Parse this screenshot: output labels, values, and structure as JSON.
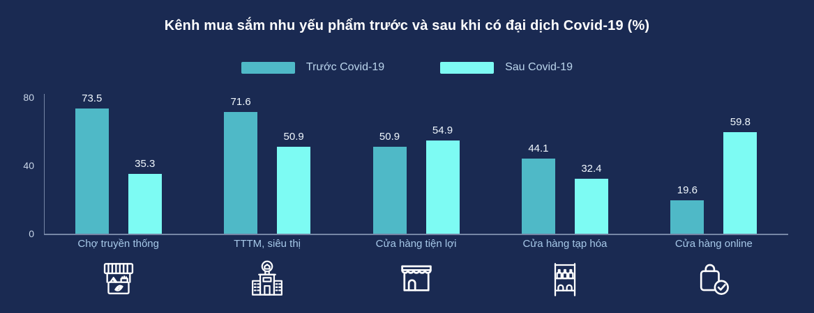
{
  "title": "Kênh mua sắm nhu yếu phẩm trước và sau khi có đại dịch Covid-19 (%)",
  "legend": [
    {
      "label": "Trước Covid-19",
      "color": "#4FB9C7"
    },
    {
      "label": "Sau Covid-19",
      "color": "#7DFBF3"
    }
  ],
  "chart_data": {
    "type": "bar",
    "title": "Kênh mua sắm nhu yếu phẩm trước và sau khi có đại dịch Covid-19 (%)",
    "categories": [
      "Chợ truyền thống",
      "TTTM, siêu thị",
      "Cửa hàng tiện lợi",
      "Cửa hàng tạp hóa",
      "Cửa hàng online"
    ],
    "series": [
      {
        "name": "Trước Covid-19",
        "color": "#4FB9C7",
        "values": [
          73.5,
          71.6,
          50.9,
          44.1,
          19.6
        ]
      },
      {
        "name": "Sau Covid-19",
        "color": "#7DFBF3",
        "values": [
          35.3,
          50.9,
          54.9,
          32.4,
          59.8
        ]
      }
    ],
    "ylim": [
      0,
      80
    ],
    "yticks": [
      0,
      40,
      80
    ],
    "grid": false,
    "legend_position": "top",
    "value_labels": true
  },
  "icons": [
    "market-stall-icon",
    "mall-building-icon",
    "storefront-icon",
    "shelf-bottles-icon",
    "shopping-bag-check-icon"
  ],
  "colors": {
    "background": "#1A2A52",
    "axis": "#C3D2EB",
    "title": "#FFFFFF",
    "category_label": "#A6C8E8",
    "value_label": "#EFF6FC",
    "legend_label": "#BBD5EC"
  }
}
